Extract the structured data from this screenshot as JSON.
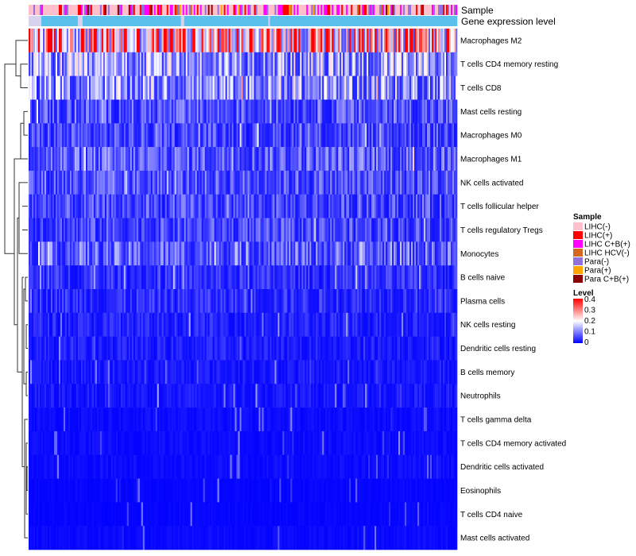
{
  "chart_data": {
    "type": "heatmap",
    "description_rows": "immune cell fractions per sample, rows clustered",
    "annotation_tracks": [
      {
        "name": "Sample"
      },
      {
        "name": "Gene expression level"
      }
    ],
    "rows": [
      {
        "label": "Macrophages M2",
        "mean": 0.3
      },
      {
        "label": "T cells CD4 memory resting",
        "mean": 0.13
      },
      {
        "label": "T cells CD8",
        "mean": 0.12
      },
      {
        "label": "Mast cells resting",
        "mean": 0.07
      },
      {
        "label": "Macrophages M0",
        "mean": 0.06
      },
      {
        "label": "Macrophages M1",
        "mean": 0.08
      },
      {
        "label": "NK cells activated",
        "mean": 0.07
      },
      {
        "label": "T cells follicular helper",
        "mean": 0.06
      },
      {
        "label": "T cells regulatory  Tregs",
        "mean": 0.06
      },
      {
        "label": "Monocytes",
        "mean": 0.08
      },
      {
        "label": "B cells naive",
        "mean": 0.04
      },
      {
        "label": "Plasma cells",
        "mean": 0.04
      },
      {
        "label": "NK cells resting",
        "mean": 0.03
      },
      {
        "label": "Dendritic cells resting",
        "mean": 0.025
      },
      {
        "label": "B cells memory",
        "mean": 0.02
      },
      {
        "label": "Neutrophils",
        "mean": 0.02
      },
      {
        "label": "T cells gamma delta",
        "mean": 0.01
      },
      {
        "label": "T cells CD4 memory activated",
        "mean": 0.01
      },
      {
        "label": "Dendritic cells activated",
        "mean": 0.01
      },
      {
        "label": "Eosinophils",
        "mean": 0.005
      },
      {
        "label": "T cells CD4 naive",
        "mean": 0.005
      },
      {
        "label": "Mast cells activated",
        "mean": 0.008
      }
    ],
    "color_scale": {
      "min": 0,
      "max": 0.4,
      "low_color": "#0000ff",
      "mid_color": "#ffffff",
      "high_color": "#ff0000",
      "mid_value": 0.2
    },
    "legends": {
      "sample": {
        "title": "Sample",
        "items": [
          {
            "label": "LIHC(-)",
            "color": "#ffc0cb"
          },
          {
            "label": "LIHC(+)",
            "color": "#ff0000"
          },
          {
            "label": "LIHC C+B(+)",
            "color": "#ff00ff"
          },
          {
            "label": "LIHC HCV(-)",
            "color": "#d2691e"
          },
          {
            "label": "Para(-)",
            "color": "#9370db"
          },
          {
            "label": "Para(+)",
            "color": "#ffa500"
          },
          {
            "label": "Para C+B(+)",
            "color": "#8b0000"
          }
        ]
      },
      "level": {
        "title": "Level",
        "ticks": [
          "0.4",
          "0.3",
          "0.2",
          "0.1",
          "0"
        ],
        "tick_values": [
          0.4,
          0.3,
          0.2,
          0.1,
          0
        ]
      }
    },
    "expression_level_color": "#5bc0eb",
    "expression_level_light_color": "#d9d2ee"
  }
}
